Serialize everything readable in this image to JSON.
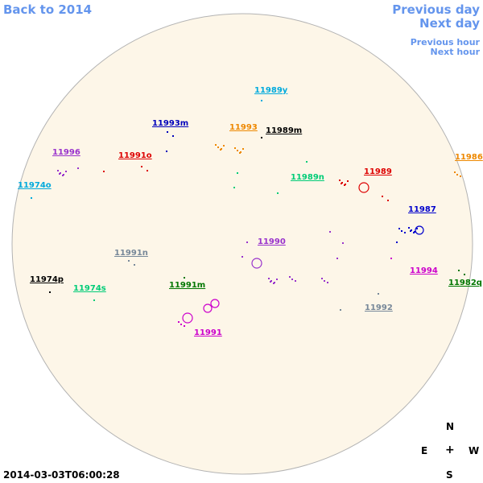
{
  "nav": {
    "back": "Back to 2014",
    "previous_day": "Previous day",
    "next_day": "Next day",
    "previous_hour": "Previous hour",
    "next_hour": "Next hour"
  },
  "timestamp": "2014-03-03T06:00:28",
  "compass": {
    "n": "N",
    "e": "E",
    "center": "+",
    "w": "W",
    "s": "S"
  },
  "colors": {
    "disk": "#fdf6e8",
    "disk_border": "#b3b3b3",
    "nav": "#6495ed"
  },
  "regions": [
    {
      "id": "11989y",
      "color": "#00aadd"
    },
    {
      "id": "11993m",
      "color": "#0000bb"
    },
    {
      "id": "11993",
      "color": "#ee8800"
    },
    {
      "id": "11989m",
      "color": "#000000"
    },
    {
      "id": "11996",
      "color": "#9933cc"
    },
    {
      "id": "11991o",
      "color": "#dd0000"
    },
    {
      "id": "11986",
      "color": "#ee8800"
    },
    {
      "id": "11989n",
      "color": "#00cc77"
    },
    {
      "id": "11989",
      "color": "#dd0000"
    },
    {
      "id": "11974o",
      "color": "#00aadd"
    },
    {
      "id": "11987",
      "color": "#0000cc"
    },
    {
      "id": "11991n",
      "color": "#778899"
    },
    {
      "id": "11990",
      "color": "#9933cc"
    },
    {
      "id": "11994",
      "color": "#cc00cc"
    },
    {
      "id": "11974p",
      "color": "#000000"
    },
    {
      "id": "11974s",
      "color": "#00cc77"
    },
    {
      "id": "11991m",
      "color": "#007700"
    },
    {
      "id": "11982q",
      "color": "#007700"
    },
    {
      "id": "11992",
      "color": "#778899"
    },
    {
      "id": "11991",
      "color": "#cc00cc"
    }
  ]
}
